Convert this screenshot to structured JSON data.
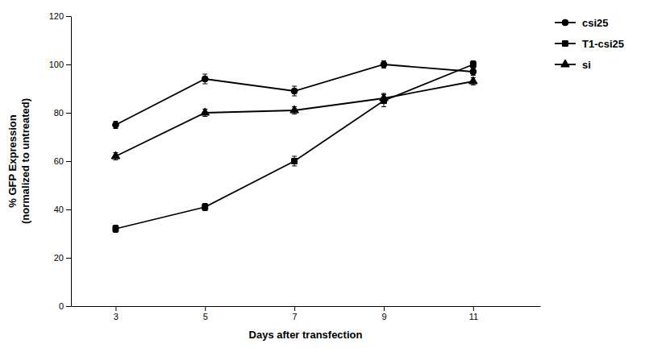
{
  "chart_data": {
    "type": "line",
    "x": [
      3,
      5,
      7,
      9,
      11
    ],
    "xlabel": "Days after transfection",
    "ylabel": "% GFP Expression\n(normalized to untreated)",
    "xlim": [
      2.0,
      12.5
    ],
    "xticks": [
      3,
      5,
      7,
      9,
      11
    ],
    "ylim": [
      0,
      120
    ],
    "yticks": [
      0,
      20,
      40,
      60,
      80,
      100,
      120
    ],
    "grid": false,
    "legend": "right",
    "series": [
      {
        "name": "csi25",
        "color": "#000000",
        "marker": "circle",
        "values": [
          75,
          94,
          89,
          100,
          97
        ],
        "errors": [
          1.5,
          2.0,
          2.0,
          1.5,
          1.5
        ]
      },
      {
        "name": "T1-csi25",
        "color": "#000000",
        "marker": "square",
        "values": [
          32,
          41,
          60,
          85,
          100
        ],
        "errors": [
          1.5,
          1.5,
          2.0,
          2.5,
          1.5
        ]
      },
      {
        "name": "si",
        "color": "#000000",
        "marker": "triangle",
        "values": [
          62,
          80,
          81,
          86,
          93
        ],
        "errors": [
          1.5,
          1.5,
          1.5,
          2.0,
          1.5
        ]
      }
    ]
  }
}
